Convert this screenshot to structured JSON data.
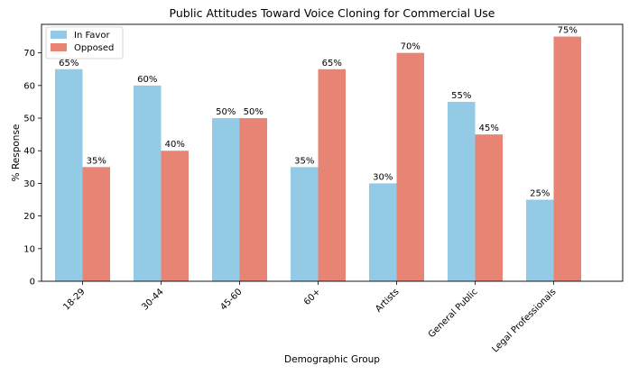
{
  "chart_data": {
    "type": "bar",
    "title": "Public Attitudes Toward Voice Cloning for Commercial Use",
    "xlabel": "Demographic Group",
    "ylabel": "% Response",
    "categories": [
      "18-29",
      "30-44",
      "45-60",
      "60+",
      "Artists",
      "General Public",
      "Legal Professionals"
    ],
    "series": [
      {
        "name": "In Favor",
        "values": [
          65,
          60,
          50,
          35,
          30,
          55,
          25
        ],
        "color": "#93cbe6",
        "labels": [
          "65%",
          "60%",
          "50%",
          "35%",
          "30%",
          "55%",
          "25%"
        ]
      },
      {
        "name": "Opposed",
        "values": [
          35,
          40,
          50,
          65,
          70,
          45,
          75
        ],
        "color": "#e88474",
        "labels": [
          "35%",
          "40%",
          "50%",
          "65%",
          "70%",
          "45%",
          "75%"
        ]
      }
    ],
    "ylim": [
      0,
      78.75
    ],
    "yticks": [
      0,
      10,
      20,
      30,
      40,
      50,
      60,
      70
    ],
    "ytick_labels": [
      "0",
      "10",
      "20",
      "30",
      "40",
      "50",
      "60",
      "70"
    ],
    "legend_position": "top-left",
    "grid": false
  }
}
